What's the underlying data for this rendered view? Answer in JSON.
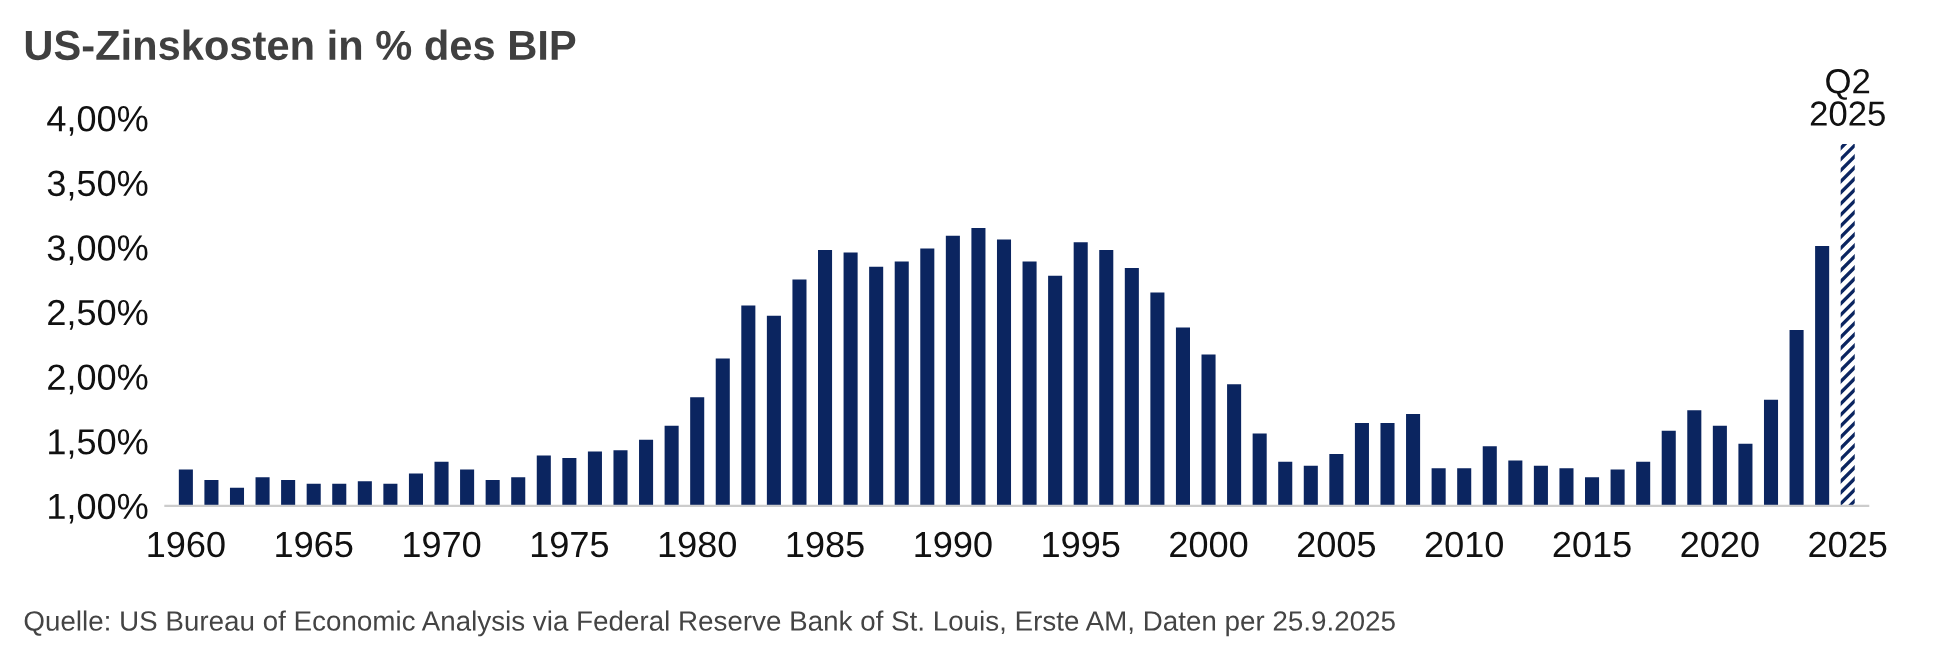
{
  "chart_data": {
    "type": "bar",
    "title": "US-Zinskosten in % des BIP",
    "categories": [
      "1960",
      null,
      null,
      null,
      null,
      "1965",
      null,
      null,
      null,
      null,
      "1970",
      null,
      null,
      null,
      null,
      "1975",
      null,
      null,
      null,
      null,
      "1980",
      null,
      null,
      null,
      null,
      "1985",
      null,
      null,
      null,
      null,
      "1990",
      null,
      null,
      null,
      null,
      "1995",
      null,
      null,
      null,
      null,
      "2000",
      null,
      null,
      null,
      null,
      "2005",
      null,
      null,
      null,
      null,
      "2010",
      null,
      null,
      null,
      null,
      "2015",
      null,
      null,
      null,
      null,
      "2020",
      null,
      null,
      null,
      null,
      "2025"
    ],
    "values": [
      1.28,
      1.2,
      1.14,
      1.22,
      1.2,
      1.17,
      1.17,
      1.19,
      1.17,
      1.25,
      1.34,
      1.28,
      1.2,
      1.22,
      1.39,
      1.37,
      1.42,
      1.43,
      1.51,
      1.62,
      1.84,
      2.14,
      2.55,
      2.47,
      2.75,
      2.98,
      2.96,
      2.85,
      2.89,
      2.99,
      3.09,
      3.15,
      3.06,
      2.89,
      2.78,
      3.04,
      2.98,
      2.84,
      2.65,
      2.38,
      2.17,
      1.94,
      1.56,
      1.34,
      1.31,
      1.4,
      1.64,
      1.64,
      1.71,
      1.29,
      1.29,
      1.46,
      1.35,
      1.31,
      1.29,
      1.22,
      1.28,
      1.34,
      1.58,
      1.74,
      1.62,
      1.48,
      1.82,
      2.36,
      3.01,
      3.8
    ],
    "color": "#0b2560",
    "ylim": [
      1.0,
      4.0
    ],
    "yticks": [
      {
        "value": 1.0,
        "label": "1,00%"
      },
      {
        "value": 1.5,
        "label": "1,50%"
      },
      {
        "value": 2.0,
        "label": "2,00%"
      },
      {
        "value": 2.5,
        "label": "2,50%"
      },
      {
        "value": 3.0,
        "label": "3,00%"
      },
      {
        "value": 3.5,
        "label": "3,50%"
      },
      {
        "value": 4.0,
        "label": "4,00%"
      }
    ],
    "grid": false,
    "legend": false,
    "annotations": [
      {
        "text": "Q2\n2025",
        "x": "2025",
        "y": 3.8
      },
      "Quelle: US Bureau of Economic Analysis via Federal Reserve Bank of St. Louis, Erste AM, Daten per 25.9.2025"
    ]
  }
}
